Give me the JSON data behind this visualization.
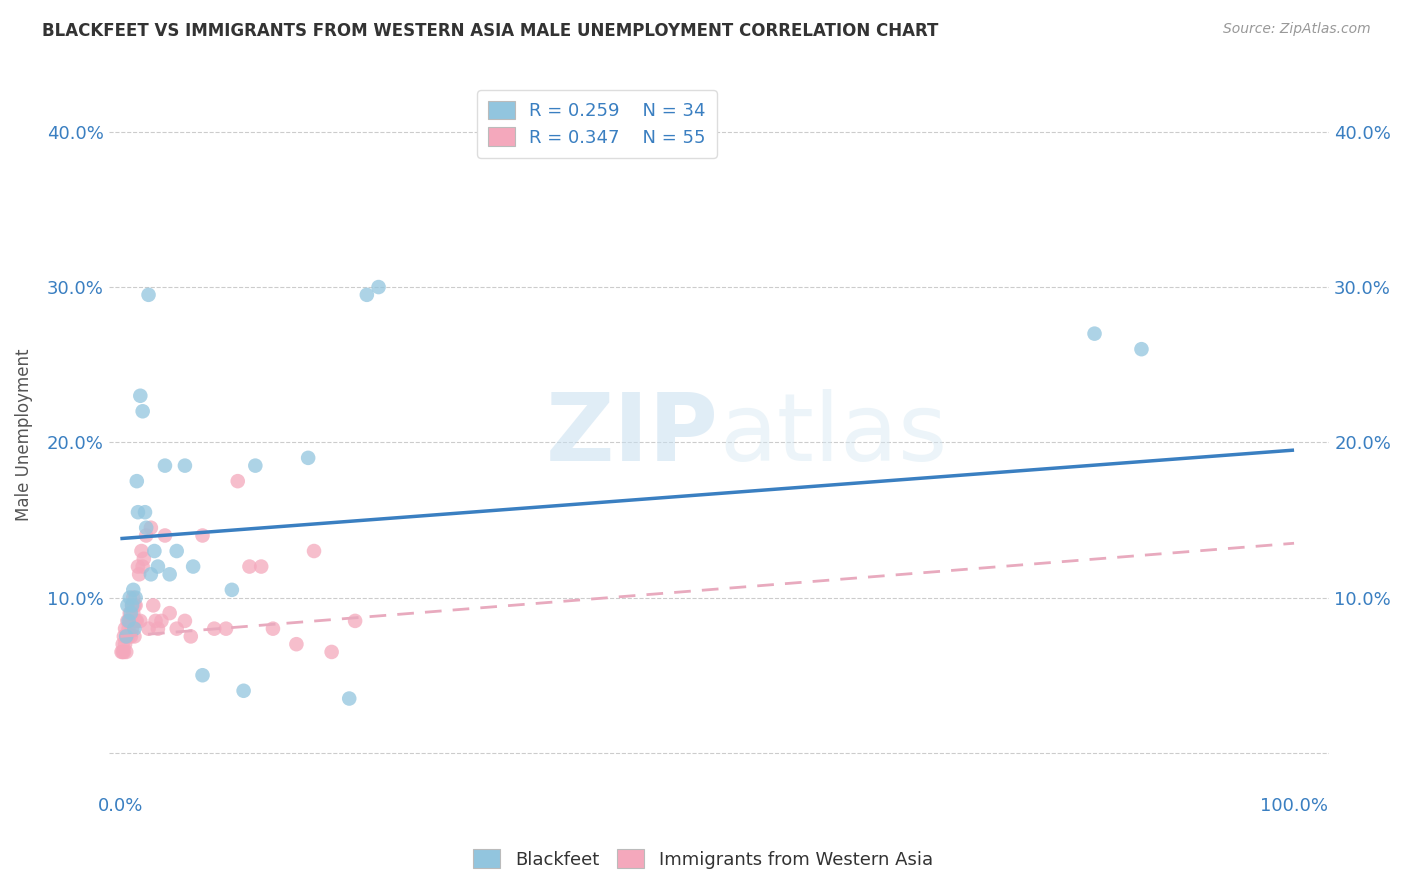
{
  "title": "BLACKFEET VS IMMIGRANTS FROM WESTERN ASIA MALE UNEMPLOYMENT CORRELATION CHART",
  "source": "Source: ZipAtlas.com",
  "ylabel": "Male Unemployment",
  "xticks": [
    0.0,
    0.2,
    0.4,
    0.6,
    0.8,
    1.0
  ],
  "xticklabels": [
    "0.0%",
    "",
    "",
    "",
    "",
    "100.0%"
  ],
  "yticks": [
    0.0,
    0.1,
    0.2,
    0.3,
    0.4
  ],
  "yticklabels": [
    "",
    "10.0%",
    "20.0%",
    "30.0%",
    "40.0%"
  ],
  "blackfeet_color": "#92c5de",
  "immigrants_color": "#f4a8bc",
  "trend_blackfeet_color": "#3a7fc1",
  "trend_immigrants_color": "#e8aabe",
  "legend_r_blackfeet": "R = 0.259",
  "legend_n_blackfeet": "N = 34",
  "legend_r_immigrants": "R = 0.347",
  "legend_n_immigrants": "N = 55",
  "watermark_zip": "ZIP",
  "watermark_atlas": "atlas",
  "blackfeet_x": [
    0.005,
    0.006,
    0.007,
    0.008,
    0.009,
    0.01,
    0.011,
    0.012,
    0.013,
    0.014,
    0.015,
    0.017,
    0.019,
    0.021,
    0.022,
    0.024,
    0.026,
    0.029,
    0.032,
    0.038,
    0.042,
    0.048,
    0.055,
    0.062,
    0.07,
    0.095,
    0.105,
    0.115,
    0.16,
    0.195,
    0.21,
    0.22,
    0.83,
    0.87
  ],
  "blackfeet_y": [
    0.075,
    0.095,
    0.085,
    0.1,
    0.09,
    0.095,
    0.105,
    0.08,
    0.1,
    0.175,
    0.155,
    0.23,
    0.22,
    0.155,
    0.145,
    0.295,
    0.115,
    0.13,
    0.12,
    0.185,
    0.115,
    0.13,
    0.185,
    0.12,
    0.05,
    0.105,
    0.04,
    0.185,
    0.19,
    0.035,
    0.295,
    0.3,
    0.27,
    0.26
  ],
  "immigrants_x": [
    0.001,
    0.002,
    0.002,
    0.003,
    0.003,
    0.004,
    0.004,
    0.005,
    0.005,
    0.006,
    0.006,
    0.007,
    0.007,
    0.008,
    0.008,
    0.009,
    0.009,
    0.01,
    0.01,
    0.011,
    0.011,
    0.012,
    0.012,
    0.013,
    0.013,
    0.014,
    0.015,
    0.016,
    0.017,
    0.018,
    0.019,
    0.02,
    0.022,
    0.024,
    0.026,
    0.028,
    0.03,
    0.032,
    0.035,
    0.038,
    0.042,
    0.048,
    0.055,
    0.06,
    0.07,
    0.08,
    0.09,
    0.1,
    0.11,
    0.12,
    0.13,
    0.15,
    0.165,
    0.18,
    0.2
  ],
  "immigrants_y": [
    0.065,
    0.07,
    0.065,
    0.075,
    0.065,
    0.07,
    0.08,
    0.075,
    0.065,
    0.075,
    0.085,
    0.075,
    0.08,
    0.085,
    0.09,
    0.075,
    0.085,
    0.08,
    0.095,
    0.1,
    0.09,
    0.095,
    0.075,
    0.095,
    0.085,
    0.085,
    0.12,
    0.115,
    0.085,
    0.13,
    0.12,
    0.125,
    0.14,
    0.08,
    0.145,
    0.095,
    0.085,
    0.08,
    0.085,
    0.14,
    0.09,
    0.08,
    0.085,
    0.075,
    0.14,
    0.08,
    0.08,
    0.175,
    0.12,
    0.12,
    0.08,
    0.07,
    0.13,
    0.065,
    0.085
  ],
  "bf_trend_x0": 0.0,
  "bf_trend_y0": 0.138,
  "bf_trend_x1": 1.0,
  "bf_trend_y1": 0.195,
  "im_trend_x0": 0.0,
  "im_trend_y0": 0.075,
  "im_trend_x1": 1.0,
  "im_trend_y1": 0.135
}
